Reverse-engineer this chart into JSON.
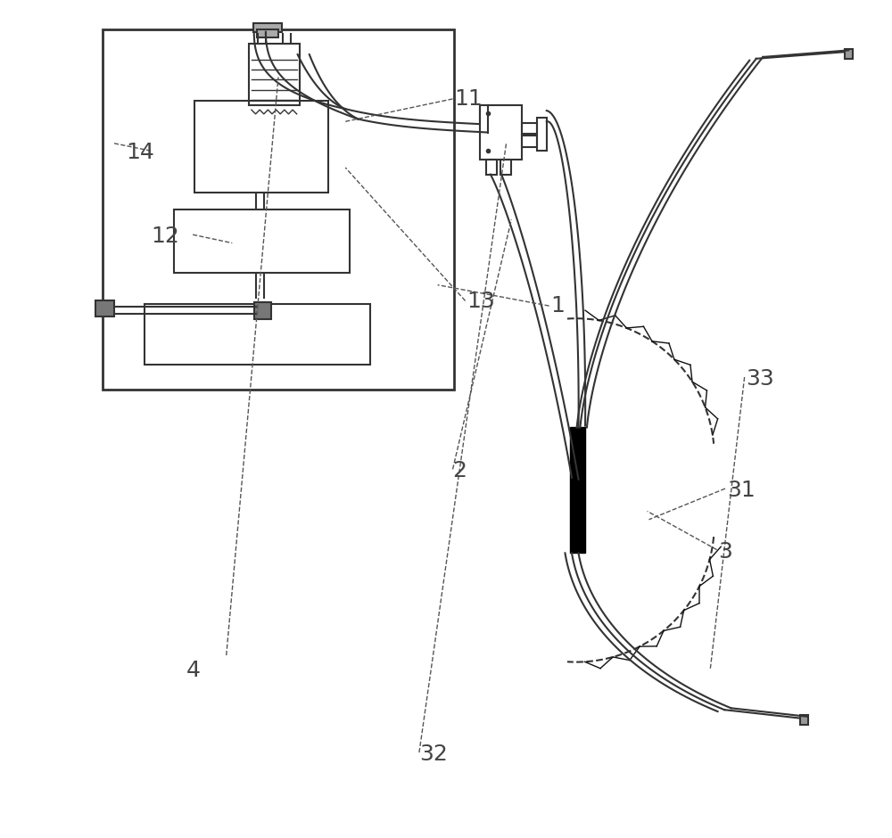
{
  "bg_color": "#ffffff",
  "line_color": "#333333",
  "dark_color": "#111111",
  "label_color": "#444444",
  "font_size": 18
}
